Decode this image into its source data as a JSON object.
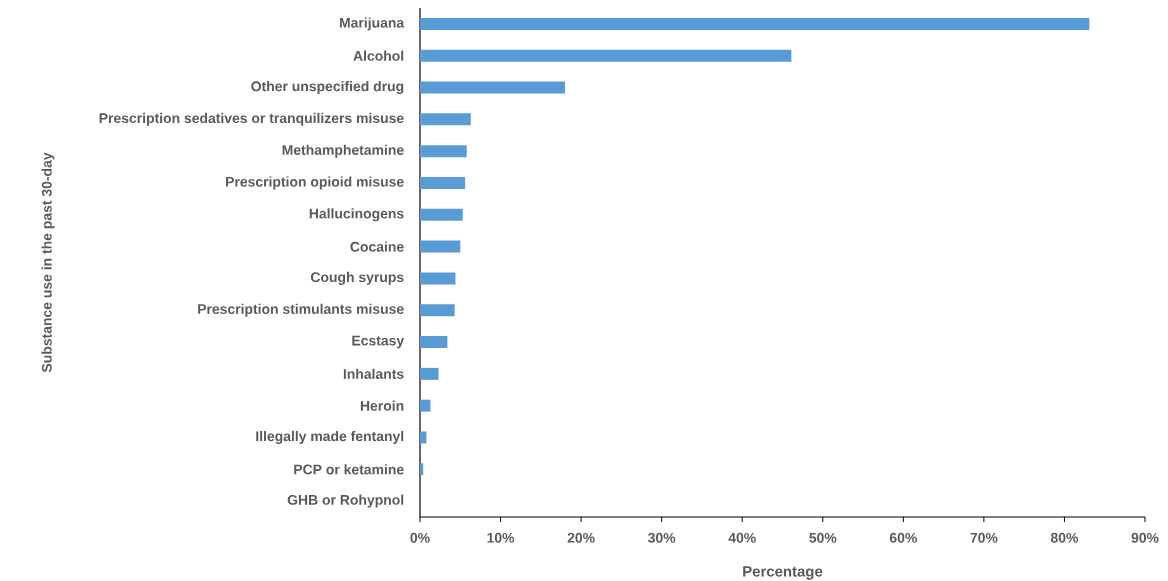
{
  "chart_data": {
    "type": "bar",
    "orientation": "horizontal",
    "xlabel": "Percentage",
    "ylabel": "Substance use in the past 30-day",
    "categories": [
      "Marijuana",
      "Alcohol",
      "Other unspecified drug",
      "Prescription sedatives or tranquilizers misuse",
      "Methamphetamine",
      "Prescription opioid misuse",
      "Hallucinogens",
      "Cocaine",
      "Cough syrups",
      "Prescription stimulants misuse",
      "Ecstasy",
      "Inhalants",
      "Heroin",
      "Illegally made fentanyl",
      "PCP or ketamine",
      "GHB or Rohypnol"
    ],
    "values": [
      83.1,
      46.1,
      18.0,
      6.3,
      5.8,
      5.6,
      5.3,
      5.0,
      4.4,
      4.3,
      3.4,
      2.3,
      1.3,
      0.8,
      0.4,
      0
    ],
    "color": "#5b9bd5",
    "xlim": [
      0,
      90
    ],
    "xticks": [
      {
        "value": 0,
        "label": "0%"
      },
      {
        "value": 10,
        "label": "10%"
      },
      {
        "value": 20,
        "label": "20%"
      },
      {
        "value": 30,
        "label": "30%"
      },
      {
        "value": 40,
        "label": "40%"
      },
      {
        "value": 50,
        "label": "50%"
      },
      {
        "value": 60,
        "label": "60%"
      },
      {
        "value": 70,
        "label": "70%"
      },
      {
        "value": 80,
        "label": "80%"
      },
      {
        "value": 90,
        "label": "90%"
      }
    ],
    "grid": false
  }
}
